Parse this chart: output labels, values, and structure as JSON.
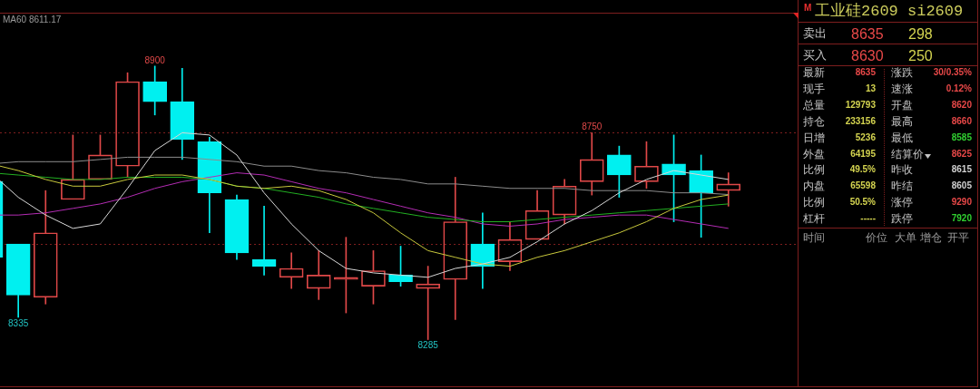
{
  "chart_data": [
    {
      "type": "candlestick",
      "categories": [
        null,
        null,
        null,
        null,
        null,
        null,
        null,
        null,
        null,
        null,
        null,
        null,
        null,
        null,
        null,
        null,
        null,
        null,
        null,
        null,
        null,
        null,
        null,
        null,
        null,
        null,
        null,
        null
      ],
      "ohlc": [
        [
          8640,
          8640,
          8470,
          8470
        ],
        [
          8500,
          8500,
          8335,
          8385
        ],
        [
          8380,
          8620,
          8365,
          8525
        ],
        [
          8600,
          8745,
          8600,
          8645
        ],
        [
          8645,
          8745,
          8645,
          8700
        ],
        [
          8675,
          8885,
          8650,
          8865
        ],
        [
          8865,
          8900,
          8790,
          8820
        ],
        [
          8820,
          8895,
          8690,
          8735
        ],
        [
          8730,
          8740,
          8525,
          8615
        ],
        [
          8600,
          8610,
          8465,
          8480
        ],
        [
          8465,
          8585,
          8430,
          8450
        ],
        [
          8425,
          8480,
          8400,
          8445
        ],
        [
          8400,
          8485,
          8375,
          8430
        ],
        [
          8420,
          8515,
          8345,
          8425
        ],
        [
          8405,
          8485,
          8365,
          8440
        ],
        [
          8430,
          8495,
          8405,
          8415
        ],
        [
          8400,
          8450,
          8285,
          8410
        ],
        [
          8420,
          8650,
          8330,
          8550
        ],
        [
          8500,
          8570,
          8400,
          8450
        ],
        [
          8460,
          8550,
          8440,
          8510
        ],
        [
          8510,
          8620,
          8510,
          8575
        ],
        [
          8565,
          8645,
          8545,
          8630
        ],
        [
          8640,
          8750,
          8610,
          8690
        ],
        [
          8700,
          8720,
          8605,
          8655
        ],
        [
          8640,
          8730,
          8625,
          8675
        ],
        [
          8680,
          8745,
          8550,
          8655
        ],
        [
          8665,
          8700,
          8515,
          8615
        ],
        [
          8620,
          8660,
          8585,
          8635
        ]
      ],
      "colors": [
        "#00f0f0",
        "#00f0f0",
        "#e04848",
        "#e04848",
        "#e04848",
        "#e04848",
        "#00f0f0",
        "#00f0f0",
        "#00f0f0",
        "#00f0f0",
        "#00f0f0",
        "#e04848",
        "#e04848",
        "#e04848",
        "#e04848",
        "#00f0f0",
        "#e04848",
        "#e04848",
        "#00f0f0",
        "#e04848",
        "#e04848",
        "#e04848",
        "#e04848",
        "#00f0f0",
        "#e04848",
        "#00f0f0",
        "#00f0f0",
        "#e04848"
      ],
      "series": [
        {
          "type": "line",
          "color": "#d8d8d8",
          "values": [
            8660,
            8605,
            8565,
            8535,
            8545,
            8625,
            8710,
            8750,
            8745,
            8700,
            8615,
            8545,
            8485,
            8445,
            8435,
            8430,
            8425,
            8445,
            8455,
            8470,
            8505,
            8545,
            8575,
            8615,
            8645,
            8665,
            8655,
            8645
          ]
        },
        {
          "type": "line",
          "color": "#c8c83c",
          "values": [
            8680,
            8665,
            8645,
            8630,
            8630,
            8645,
            8655,
            8655,
            8645,
            8630,
            8625,
            8630,
            8620,
            8600,
            8570,
            8525,
            8485,
            8470,
            8455,
            8450,
            8470,
            8485,
            8505,
            8525,
            8550,
            8580,
            8600,
            8610
          ]
        },
        {
          "type": "line",
          "color": "#22b022",
          "values": [
            8660,
            8655,
            8650,
            8645,
            8645,
            8650,
            8650,
            8650,
            8645,
            8630,
            8625,
            8615,
            8605,
            8590,
            8580,
            8570,
            8560,
            8555,
            8550,
            8550,
            8555,
            8560,
            8565,
            8570,
            8575,
            8580,
            8585,
            8590
          ]
        },
        {
          "type": "line",
          "color": "#b42cb4",
          "values": [
            8565,
            8565,
            8570,
            8580,
            8590,
            8605,
            8625,
            8640,
            8650,
            8660,
            8655,
            8640,
            8625,
            8615,
            8600,
            8585,
            8570,
            8560,
            8545,
            8540,
            8545,
            8555,
            8560,
            8565,
            8565,
            8555,
            8545,
            8535
          ]
        },
        {
          "type": "line",
          "color": "#8c8c8c",
          "values": [
            8680,
            8685,
            8685,
            8685,
            8690,
            8695,
            8695,
            8695,
            8690,
            8685,
            8675,
            8675,
            8665,
            8660,
            8650,
            8645,
            8635,
            8635,
            8630,
            8625,
            8625,
            8625,
            8620,
            8620,
            8620,
            8615,
            8615,
            8611.17
          ]
        }
      ],
      "ylim": [
        8180,
        9020
      ],
      "yticks": [
        {
          "value": 8500,
          "label": null
        },
        {
          "value": 8750,
          "label": null
        }
      ],
      "grid": "y",
      "tick_labels": false,
      "annotations": [
        "MA60 8611.17",
        {
          "text": "8900",
          "y": 8900
        },
        {
          "text": "8335",
          "y": 8335
        },
        {
          "text": "8285",
          "y": 8285
        },
        {
          "text": "8750",
          "y": 8750
        }
      ]
    },
    {
      "type": "other",
      "title": "工业硅2609 si2609",
      "annotations": [
        "M",
        "卖出",
        "8635",
        "298",
        "买入",
        "8630",
        "250",
        "最新",
        "8635",
        "涨跌",
        "30/0.35%",
        "现手",
        "13",
        "速涨",
        "0.12%",
        "总量",
        "129793",
        "开盘",
        "8620",
        "持仓",
        "233156",
        "最高",
        "8660",
        "日增",
        "5236",
        "最低",
        "8585",
        "外盘",
        "64195",
        "结算价",
        "8625",
        "比例",
        "49.5%",
        "昨收",
        "8615",
        "内盘",
        "65598",
        "昨结",
        "8605",
        "比例",
        "50.5%",
        "涨停",
        "9290",
        "杠杆",
        "-----",
        "跌停",
        "7920",
        "时间",
        "价位",
        "大单",
        "增仓",
        "开平"
      ]
    }
  ]
}
